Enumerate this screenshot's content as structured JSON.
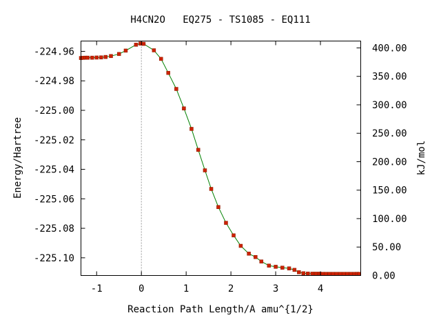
{
  "chart_data": {
    "type": "line",
    "title": "H4CN2O   EQ275 - TS1085 - EQ111",
    "xlabel": "Reaction Path Length/A amu^{1/2}",
    "ylabel": "Energy/Hartree",
    "y2label": "kJ/mol",
    "xlim": [
      -1.35,
      4.9
    ],
    "ylim": [
      -225.112,
      -224.953
    ],
    "y2lim": [
      0,
      412.1
    ],
    "x_ticks": [
      -1,
      0,
      1,
      2,
      3,
      4
    ],
    "x_tick_labels": [
      "-1",
      "0",
      "1",
      "2",
      "3",
      "4"
    ],
    "y_ticks": [
      -224.96,
      -224.98,
      -225.0,
      -225.02,
      -225.04,
      -225.06,
      -225.08,
      -225.1
    ],
    "y_tick_labels": [
      "-224.96",
      "-224.98",
      "-225.00",
      "-225.02",
      "-225.04",
      "-225.06",
      "-225.08",
      "-225.10"
    ],
    "y2_ticks": [
      400,
      350,
      300,
      250,
      200,
      150,
      100,
      50,
      0
    ],
    "y2_tick_labels": [
      "400.00",
      "350.00",
      "300.00",
      "250.00",
      "200.00",
      "150.00",
      "100.00",
      "50.00",
      "0.00"
    ],
    "ts_x": 0,
    "grid": false,
    "colors": {
      "line": "#008000",
      "marker": "#cc2200",
      "marker_edge": "#8b1a00",
      "ts_line": "#999999"
    },
    "series": [
      {
        "x": [
          -1.35,
          -1.3,
          -1.25,
          -1.2,
          -1.1,
          -1.0,
          -0.9,
          -0.8,
          -0.68,
          -0.5,
          -0.35,
          -0.12,
          -0.02,
          0.05,
          0.28,
          0.44,
          0.6,
          0.78,
          0.95,
          1.12,
          1.27,
          1.42,
          1.56,
          1.72,
          1.89,
          2.06,
          2.22,
          2.4,
          2.55,
          2.68,
          2.85,
          3.0,
          3.15,
          3.3,
          3.42,
          3.52,
          3.62,
          3.72,
          3.82,
          3.9,
          3.98,
          4.05,
          4.12,
          4.2,
          4.28,
          4.36,
          4.44,
          4.52,
          4.6,
          4.68,
          4.76,
          4.82,
          4.86
        ],
        "y": [
          -224.9645,
          -224.9644,
          -224.9643,
          -224.9643,
          -224.9643,
          -224.9642,
          -224.9641,
          -224.9638,
          -224.9632,
          -224.9618,
          -224.9595,
          -224.9555,
          -224.9547,
          -224.9549,
          -224.9593,
          -224.9651,
          -224.9746,
          -224.9855,
          -224.9987,
          -225.0126,
          -225.0268,
          -225.0407,
          -225.0533,
          -225.0656,
          -225.0763,
          -225.0848,
          -225.0919,
          -225.0972,
          -225.0995,
          -225.1025,
          -225.1053,
          -225.1061,
          -225.1067,
          -225.1072,
          -225.1082,
          -225.1098,
          -225.1105,
          -225.1107,
          -225.1108,
          -225.1108,
          -225.1108,
          -225.1109,
          -225.1109,
          -225.1109,
          -225.1109,
          -225.1109,
          -225.1109,
          -225.1109,
          -225.1109,
          -225.1109,
          -225.1109,
          -225.1109,
          -225.1109
        ]
      }
    ]
  }
}
